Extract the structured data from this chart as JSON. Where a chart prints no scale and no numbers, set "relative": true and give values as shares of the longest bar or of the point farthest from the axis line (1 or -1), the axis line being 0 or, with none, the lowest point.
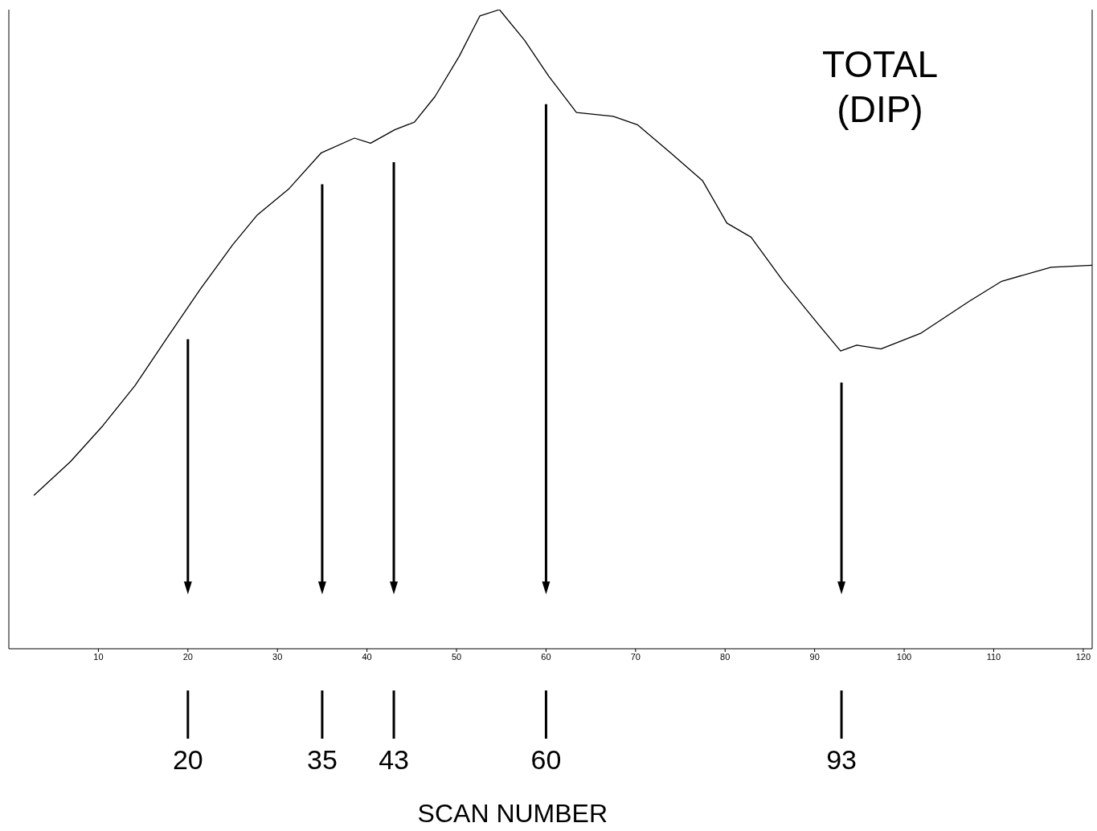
{
  "chart_data": {
    "type": "line",
    "title": "TOTAL (DIP)",
    "relative": true,
    "xlim": [
      0,
      121
    ],
    "xticks": [
      10,
      20,
      30,
      40,
      50,
      60,
      70,
      80,
      90,
      100,
      110,
      120
    ],
    "grid": false,
    "legend": false,
    "marker": "none",
    "line_style": "solid",
    "x": [
      2.8,
      6.9,
      10.5,
      14.1,
      17.7,
      21.4,
      25,
      27.7,
      31.3,
      34.9,
      38.6,
      40.4,
      43.1,
      45.3,
      47.6,
      50.3,
      52.6,
      54.8,
      57.6,
      60.3,
      63.4,
      67.5,
      70.2,
      73.9,
      77.5,
      80.2,
      82.9,
      86.5,
      90.1,
      92.9,
      94.7,
      97.4,
      101.9,
      107.3,
      110.9,
      116.4,
      121
    ],
    "series": [
      {
        "color": "#000000",
        "values": [
          0.24,
          0.293,
          0.349,
          0.412,
          0.487,
          0.563,
          0.632,
          0.678,
          0.72,
          0.776,
          0.799,
          0.791,
          0.812,
          0.824,
          0.864,
          0.927,
          0.99,
          1,
          0.952,
          0.896,
          0.839,
          0.833,
          0.82,
          0.776,
          0.732,
          0.666,
          0.644,
          0.575,
          0.513,
          0.466,
          0.475,
          0.469,
          0.494,
          0.544,
          0.575,
          0.597,
          0.6
        ]
      }
    ],
    "ref_lines": [
      {
        "axis": "x",
        "value": 20
      },
      {
        "axis": "x",
        "value": 35
      },
      {
        "axis": "x",
        "value": 43
      },
      {
        "axis": "x",
        "value": 60
      },
      {
        "axis": "x",
        "value": 93
      }
    ],
    "annotations": [
      "20",
      "35",
      "43",
      "60",
      "93",
      "SCAN NUMBER"
    ]
  }
}
